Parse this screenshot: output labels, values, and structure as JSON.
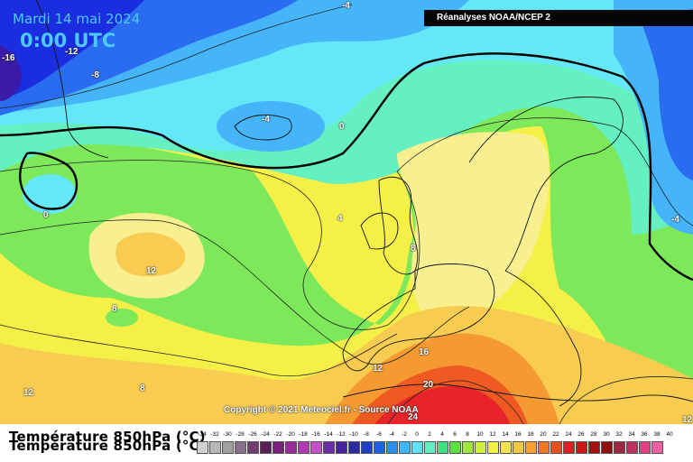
{
  "header": {
    "date": "Mardi 14 mai 2024",
    "time": "0:00 UTC",
    "source": "Réanalyses NOAA/NCEP 2"
  },
  "copyright": "Copyright © 2021 Meteociel.fr - Source NOAA",
  "variable_title": "Température 850hPa (°C)",
  "contour_labels": [
    {
      "id": "lbl-m4-top",
      "text": "-4"
    },
    {
      "id": "lbl-m16",
      "text": "-16"
    },
    {
      "id": "lbl-m12",
      "text": "-12"
    },
    {
      "id": "lbl-m8",
      "text": "-8"
    },
    {
      "id": "lbl-m4-iceland",
      "text": "-4"
    },
    {
      "id": "lbl-0-center",
      "text": "0"
    },
    {
      "id": "lbl-0-west",
      "text": "0"
    },
    {
      "id": "lbl-4-ireland",
      "text": "4"
    },
    {
      "id": "lbl-m4-east",
      "text": "-4"
    },
    {
      "id": "lbl-8-france",
      "text": "8"
    },
    {
      "id": "lbl-12-atlantic",
      "text": "12"
    },
    {
      "id": "lbl-8-west",
      "text": "8"
    },
    {
      "id": "lbl-12-spain",
      "text": "12"
    },
    {
      "id": "lbl-16-med",
      "text": "16"
    },
    {
      "id": "lbl-8-south",
      "text": "8"
    },
    {
      "id": "lbl-12-sw",
      "text": "12"
    },
    {
      "id": "lbl-20-med",
      "text": "20"
    },
    {
      "id": "lbl-24-africa",
      "text": "24"
    },
    {
      "id": "lbl-12-se",
      "text": "12"
    }
  ],
  "scale": {
    "ticks": [
      "-34",
      "-32",
      "-30",
      "-28",
      "-26",
      "-24",
      "-22",
      "-20",
      "-18",
      "-16",
      "-14",
      "-12",
      "-10",
      "-8",
      "-6",
      "-4",
      "-2",
      "0",
      "2",
      "4",
      "6",
      "8",
      "10",
      "12",
      "14",
      "16",
      "18",
      "20",
      "22",
      "24",
      "26",
      "28",
      "30",
      "32",
      "34",
      "36",
      "38",
      "40"
    ],
    "colors": [
      "#d0d0d0",
      "#b8b8b8",
      "#a0a0a0",
      "#8a6f8a",
      "#6f3f6f",
      "#5a1f5a",
      "#7a1f7a",
      "#9a2a9a",
      "#b23ab2",
      "#c850c8",
      "#6b2ca8",
      "#4a1fa0",
      "#2c2ca0",
      "#1f3fc8",
      "#1f60e0",
      "#2b8ff0",
      "#40b8f8",
      "#60e0ff",
      "#60f0c0",
      "#40e080",
      "#60e040",
      "#a0e840",
      "#d0f040",
      "#f0f040",
      "#f8e050",
      "#f8c840",
      "#f8a030",
      "#f07820",
      "#e85020",
      "#e02020",
      "#c81818",
      "#a81010",
      "#901010",
      "#a02840",
      "#c03060",
      "#e04080",
      "#f060a0"
    ]
  },
  "map_legend_colors": {
    "deep_blue": "#1a2ee0",
    "blue": "#2a6cf0",
    "light_blue": "#46b4f8",
    "cyan": "#64e8f8",
    "teal": "#64f0c0",
    "green": "#7ce85a",
    "yellowgreen": "#c8f04a",
    "yellow": "#f4f048",
    "pale_yellow": "#f8f090",
    "orange_yellow": "#f8cc50",
    "orange": "#f49a30",
    "red_orange": "#ee5a22",
    "red": "#e8242a"
  }
}
